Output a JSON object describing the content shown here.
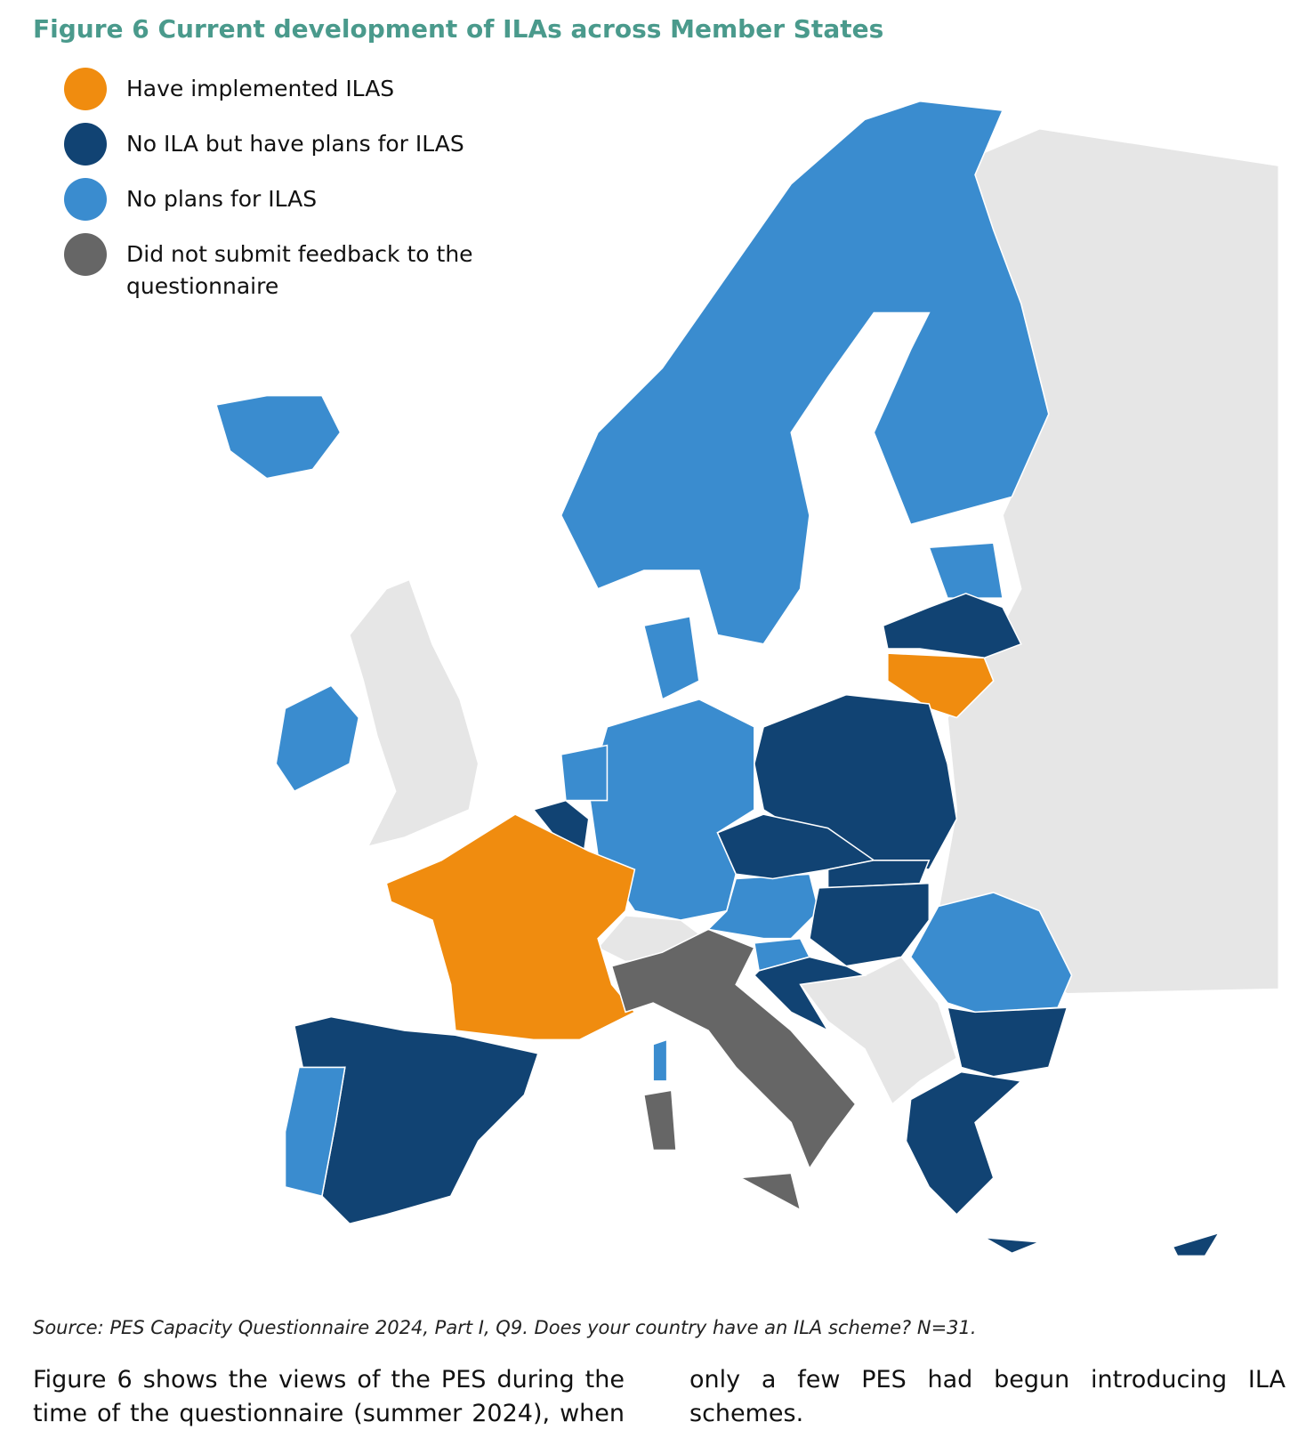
{
  "header": {
    "title": "Figure 6 Current development of ILAs across Member States"
  },
  "legend": [
    {
      "label": "Have implemented ILAS",
      "color": "#f08c0f"
    },
    {
      "label": "No ILA but have plans for ILAS",
      "color": "#114373"
    },
    {
      "label": "No plans for ILAS",
      "color": "#3a8ccf"
    },
    {
      "label": "Did not submit feedback to the questionnaire",
      "color": "#666666"
    }
  ],
  "source": "Source: PES Capacity Questionnaire 2024, Part I, Q9. Does your country have an ILA scheme? N=31.",
  "paragraph": {
    "column_1": "Figure 6 shows the views of the PES during the time of the questionnaire (summer 2024), when",
    "column_2": "only a few PES had begun introducing ILA schemes."
  }
}
